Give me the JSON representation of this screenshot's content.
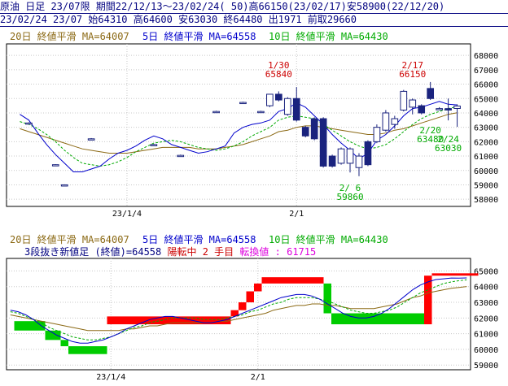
{
  "header": {
    "line1": "原油 日足 23/07限 期間22/12/13～23/02/24( 50)高66150(23/02/17)安58900(22/12/20)",
    "line2": "23/02/24 23/07 始64310 高64600 安63030 終64480 出1971 前取29660"
  },
  "colors": {
    "header_text": "#000080",
    "ma20": "#8b6914",
    "ma5": "#0000cc",
    "ma10": "#00aa00",
    "candle_up": "#ffffff",
    "candle_down": "#1a237e",
    "annotation_high": "#cc0000",
    "annotation_low": "#00aa00",
    "brick_up": "#ff0000",
    "brick_down": "#00cc00",
    "status_text": "#dd00dd"
  },
  "chart_data": [
    {
      "type": "candlestick",
      "legend": {
        "ma20": "20日 終値平滑 MA=64007",
        "ma5": "5日 終値平滑 MA=64558",
        "ma10": "10日 終値平滑 MA=64430"
      },
      "ylim": [
        57500,
        68800
      ],
      "y_ticks": [
        58000,
        59000,
        60000,
        61000,
        62000,
        63000,
        64000,
        65000,
        66000,
        67000,
        68000
      ],
      "x_tick_labels": [
        {
          "label": "23/1/4",
          "index": 13
        },
        {
          "label": "2/1",
          "index": 32
        }
      ],
      "annotations": [
        {
          "index": 30,
          "date": "1/30",
          "value": "65840",
          "kind": "high"
        },
        {
          "index": 45,
          "date": "2/17",
          "value": "66150",
          "kind": "high"
        },
        {
          "index": 38,
          "date": "2/ 6",
          "value": "59860",
          "kind": "low"
        },
        {
          "index": 47,
          "date": "2/20",
          "value": "63480",
          "kind": "low"
        },
        {
          "index": 49,
          "date": "2/24",
          "value": "63030",
          "kind": "low"
        }
      ],
      "candles": [
        {
          "i": 2,
          "o": 63250,
          "h": 63350,
          "l": 63200,
          "c": 63300
        },
        {
          "i": 5,
          "o": 60380,
          "h": 60430,
          "l": 60330,
          "c": 60400
        },
        {
          "i": 6,
          "o": 58980,
          "h": 59030,
          "l": 58930,
          "c": 59000
        },
        {
          "i": 9,
          "o": 62200,
          "h": 62250,
          "l": 62150,
          "c": 62200
        },
        {
          "i": 16,
          "o": 61800,
          "h": 61850,
          "l": 61750,
          "c": 61800
        },
        {
          "i": 19,
          "o": 61050,
          "h": 61100,
          "l": 61000,
          "c": 61050
        },
        {
          "i": 23,
          "o": 64100,
          "h": 64150,
          "l": 64050,
          "c": 64100
        },
        {
          "i": 26,
          "o": 64730,
          "h": 64780,
          "l": 64680,
          "c": 64730
        },
        {
          "i": 28,
          "o": 64100,
          "h": 64150,
          "l": 64050,
          "c": 64100
        },
        {
          "i": 29,
          "o": 64500,
          "h": 65300,
          "l": 64400,
          "c": 65300
        },
        {
          "i": 30,
          "o": 65300,
          "h": 65500,
          "l": 64800,
          "c": 64900
        },
        {
          "i": 31,
          "o": 63900,
          "h": 65100,
          "l": 63800,
          "c": 65000
        },
        {
          "i": 32,
          "o": 65000,
          "h": 65800,
          "l": 63400,
          "c": 63500
        },
        {
          "i": 33,
          "o": 63000,
          "h": 63100,
          "l": 62300,
          "c": 62400
        },
        {
          "i": 34,
          "o": 63600,
          "h": 63700,
          "l": 62100,
          "c": 62200
        },
        {
          "i": 35,
          "o": 63600,
          "h": 63700,
          "l": 60200,
          "c": 60300
        },
        {
          "i": 36,
          "o": 61000,
          "h": 61100,
          "l": 60200,
          "c": 60300
        },
        {
          "i": 37,
          "o": 60500,
          "h": 61600,
          "l": 60400,
          "c": 61500
        },
        {
          "i": 38,
          "o": 60500,
          "h": 61600,
          "l": 59860,
          "c": 61500
        },
        {
          "i": 39,
          "o": 60200,
          "h": 61200,
          "l": 59600,
          "c": 61000
        },
        {
          "i": 40,
          "o": 62000,
          "h": 62100,
          "l": 60300,
          "c": 60400
        },
        {
          "i": 41,
          "o": 62000,
          "h": 63200,
          "l": 61900,
          "c": 63000
        },
        {
          "i": 42,
          "o": 62800,
          "h": 64200,
          "l": 62700,
          "c": 64000
        },
        {
          "i": 43,
          "o": 63200,
          "h": 63800,
          "l": 62900,
          "c": 63600
        },
        {
          "i": 44,
          "o": 64200,
          "h": 65600,
          "l": 64100,
          "c": 65500
        },
        {
          "i": 45,
          "o": 64400,
          "h": 65000,
          "l": 63900,
          "c": 64900
        },
        {
          "i": 46,
          "o": 64500,
          "h": 64600,
          "l": 63900,
          "c": 64000
        },
        {
          "i": 47,
          "o": 65700,
          "h": 66150,
          "l": 64900,
          "c": 65000
        },
        {
          "i": 48,
          "o": 64300,
          "h": 64400,
          "l": 64200,
          "c": 64300
        },
        {
          "i": 49,
          "o": 64300,
          "h": 65000,
          "l": 63480,
          "c": 64200
        },
        {
          "i": 50,
          "o": 64310,
          "h": 64600,
          "l": 63030,
          "c": 64480
        }
      ],
      "ma5": [
        63900,
        63500,
        62600,
        61800,
        61100,
        60500,
        59900,
        59900,
        60100,
        60300,
        60800,
        61200,
        61400,
        61700,
        62100,
        62400,
        62200,
        61800,
        61600,
        61400,
        61200,
        61300,
        61500,
        61700,
        62600,
        63000,
        63200,
        63300,
        63500,
        64100,
        64300,
        64700,
        64400,
        63800,
        63200,
        62500,
        61900,
        61400,
        60800,
        61200,
        62100,
        62500,
        63100,
        63800,
        64300,
        64400,
        64600,
        64800,
        64600,
        64558
      ],
      "ma10": [
        63400,
        63200,
        62900,
        62500,
        62000,
        61400,
        60900,
        60500,
        60400,
        60300,
        60400,
        60600,
        60900,
        61300,
        61600,
        61900,
        62000,
        62100,
        62000,
        61800,
        61600,
        61500,
        61400,
        61500,
        61700,
        62000,
        62400,
        62700,
        63000,
        63500,
        63700,
        63800,
        63700,
        63600,
        63200,
        62800,
        62400,
        62000,
        61700,
        61500,
        61600,
        61800,
        62200,
        62700,
        63200,
        63600,
        63900,
        64100,
        64300,
        64430
      ],
      "ma20": [
        62900,
        62700,
        62500,
        62300,
        62100,
        61900,
        61700,
        61500,
        61400,
        61300,
        61200,
        61200,
        61200,
        61300,
        61400,
        61500,
        61600,
        61600,
        61600,
        61600,
        61500,
        61500,
        61500,
        61600,
        61700,
        61800,
        62000,
        62200,
        62400,
        62700,
        62800,
        63000,
        63100,
        63100,
        63000,
        62900,
        62800,
        62700,
        62600,
        62500,
        62500,
        62600,
        62800,
        62900,
        63100,
        63300,
        63500,
        63700,
        63900,
        64007
      ]
    },
    {
      "type": "three-line-break",
      "legend": {
        "ma20": "20日 終値平滑 MA=64007",
        "ma5": "5日 終値平滑 MA=64558",
        "ma10": "10日 終値平滑 MA=64430"
      },
      "status": {
        "prefix": "3段抜き新値足 (終値)=64558",
        "trend": "陽転中",
        "count": "2 手目",
        "reversal": "転換値 : 61715"
      },
      "ylim": [
        58700,
        65800
      ],
      "y_ticks": [
        59000,
        60000,
        61000,
        62000,
        63000,
        64000,
        65000
      ],
      "x_tick_labels": [
        {
          "label": "23/1/4",
          "index": 13
        },
        {
          "label": "2/1",
          "index": 32
        }
      ],
      "bricks": [
        {
          "from": 1,
          "to": 4,
          "low": 61200,
          "high": 61800,
          "dir": "down"
        },
        {
          "from": 5,
          "to": 6,
          "low": 60600,
          "high": 61200,
          "dir": "down"
        },
        {
          "from": 7,
          "to": 7,
          "low": 60200,
          "high": 60600,
          "dir": "down"
        },
        {
          "from": 8,
          "to": 12,
          "low": 59700,
          "high": 60200,
          "dir": "down"
        },
        {
          "from": 13,
          "to": 28,
          "low": 61600,
          "high": 62100,
          "dir": "up"
        },
        {
          "from": 29,
          "to": 29,
          "low": 62100,
          "high": 62500,
          "dir": "up"
        },
        {
          "from": 30,
          "to": 30,
          "low": 62500,
          "high": 63000,
          "dir": "up"
        },
        {
          "from": 31,
          "to": 31,
          "low": 63000,
          "high": 63700,
          "dir": "up"
        },
        {
          "from": 32,
          "to": 32,
          "low": 63700,
          "high": 64200,
          "dir": "up"
        },
        {
          "from": 33,
          "to": 36,
          "low": 64200,
          "high": 64600,
          "dir": "up"
        },
        {
          "from": 37,
          "to": 40,
          "low": 64200,
          "high": 64600,
          "dir": "up"
        },
        {
          "from": 41,
          "to": 41,
          "low": 62300,
          "high": 64200,
          "dir": "down"
        },
        {
          "from": 42,
          "to": 53,
          "low": 61600,
          "high": 62300,
          "dir": "down"
        },
        {
          "from": 54,
          "to": 54,
          "low": 61600,
          "high": 64700,
          "dir": "up"
        },
        {
          "from": 55,
          "to": 60,
          "low": 64700,
          "high": 64850,
          "dir": "up"
        }
      ],
      "brick_slots": 60,
      "ma5": [
        62500,
        62400,
        62200,
        61900,
        61500,
        61200,
        60900,
        60700,
        60500,
        60400,
        60400,
        60500,
        60600,
        60800,
        61000,
        61300,
        61500,
        61700,
        61900,
        62000,
        62100,
        62100,
        62000,
        61900,
        61800,
        61700,
        61700,
        61800,
        61900,
        62100,
        62300,
        62500,
        62700,
        62900,
        63100,
        63300,
        63400,
        63500,
        63500,
        63400,
        63200,
        62900,
        62600,
        62300,
        62100,
        62000,
        62000,
        62100,
        62300,
        62600,
        63000,
        63400,
        63800,
        64100,
        64300,
        64450,
        64500,
        64550,
        64540,
        64558
      ],
      "ma10": [
        62400,
        62300,
        62100,
        61900,
        61700,
        61400,
        61200,
        61000,
        60800,
        60700,
        60600,
        60600,
        60700,
        60800,
        61000,
        61200,
        61400,
        61500,
        61700,
        61800,
        61900,
        62000,
        62000,
        62000,
        62000,
        61900,
        61900,
        61900,
        62000,
        62100,
        62200,
        62400,
        62500,
        62700,
        62900,
        63000,
        63200,
        63300,
        63300,
        63300,
        63200,
        63100,
        62900,
        62700,
        62500,
        62400,
        62300,
        62300,
        62400,
        62500,
        62700,
        63000,
        63300,
        63600,
        63800,
        64000,
        64200,
        64300,
        64380,
        64430
      ],
      "ma20": [
        62200,
        62100,
        62000,
        61900,
        61800,
        61700,
        61600,
        61500,
        61400,
        61300,
        61200,
        61200,
        61200,
        61200,
        61200,
        61300,
        61300,
        61400,
        61500,
        61500,
        61600,
        61700,
        61700,
        61700,
        61700,
        61700,
        61700,
        61800,
        61800,
        61900,
        62000,
        62100,
        62200,
        62300,
        62500,
        62600,
        62700,
        62800,
        62800,
        62900,
        62900,
        62800,
        62800,
        62700,
        62600,
        62600,
        62600,
        62600,
        62700,
        62800,
        62900,
        63100,
        63300,
        63400,
        63600,
        63700,
        63800,
        63900,
        63950,
        64007
      ]
    }
  ]
}
